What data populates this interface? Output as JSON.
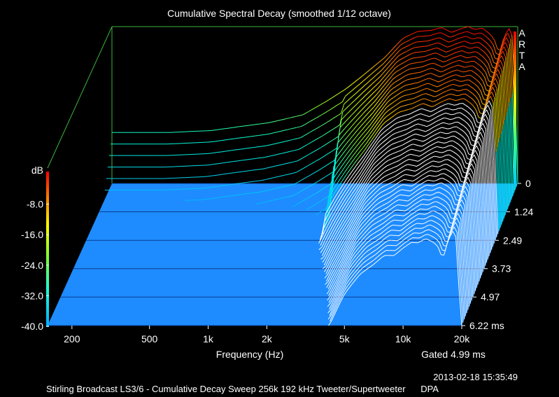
{
  "chart_data": {
    "type": "area",
    "title": "Cumulative Spectral Decay (smoothed 1/12 octave)",
    "xlabel": "Frequency (Hz)",
    "ylabel": "dB",
    "zlabel_units": "ms",
    "brand": "ARTA",
    "x_scale": "log",
    "xlim": [
      150,
      20000
    ],
    "ylim": [
      -40,
      0
    ],
    "zlim": [
      0,
      6.22
    ],
    "x_ticks": [
      200,
      500,
      1000,
      2000,
      5000,
      10000,
      20000
    ],
    "x_tick_labels": [
      "200",
      "500",
      "1k",
      "2k",
      "5k",
      "10k",
      "20k"
    ],
    "y_tick_labels": [
      "-8.0",
      "-16.0",
      "-24.0",
      "-32.0",
      "-40.0"
    ],
    "y_ticks": [
      -8,
      -16,
      -24,
      -32,
      -40
    ],
    "z_tick_labels": [
      "0",
      "1.24",
      "2.49",
      "3.73",
      "4.97",
      "6.22 ms"
    ],
    "z_ticks": [
      0,
      1.24,
      2.49,
      3.73,
      4.97,
      6.22
    ],
    "gated_label": "Gated 4.99 ms",
    "timestamp": "2013-02-18  15:35:49",
    "footer": "Stirling Broadcast LS3/6 - Cumulative Decay Sweep 256k 192 kHz Tweeter/Supertweeter      DPA",
    "colors": {
      "background": "#000000",
      "floor": "#1e8cff",
      "frame": "#3cb43c",
      "text": "#ffffff"
    },
    "slices": 46,
    "series": [
      {
        "x": [
          150,
          200,
          300,
          500,
          700,
          1000,
          1500,
          2000,
          2500,
          3000,
          4000,
          5000,
          6000,
          7000,
          8000,
          9000,
          10000,
          11000,
          12000,
          13000,
          14000,
          15000,
          16000,
          17000,
          18000,
          19000,
          20000
        ],
        "values": [
          -27,
          -27,
          -27,
          -26.5,
          -25.5,
          -24.5,
          -22.5,
          -19,
          -16,
          -13,
          -8,
          -3,
          -1.2,
          -1,
          -0.2,
          -1.5,
          -0.6,
          0,
          -0.8,
          -0.3,
          -1.5,
          -3,
          -7,
          -2.5,
          -0.5,
          -3,
          -40
        ]
      },
      {
        "x": [
          4500,
          6000,
          7000,
          8000,
          10000,
          12000,
          14000,
          16000,
          18000
        ],
        "values": [
          -30,
          -22,
          -20,
          -21,
          -17,
          -19,
          -25,
          -21,
          -22
        ]
      }
    ]
  }
}
